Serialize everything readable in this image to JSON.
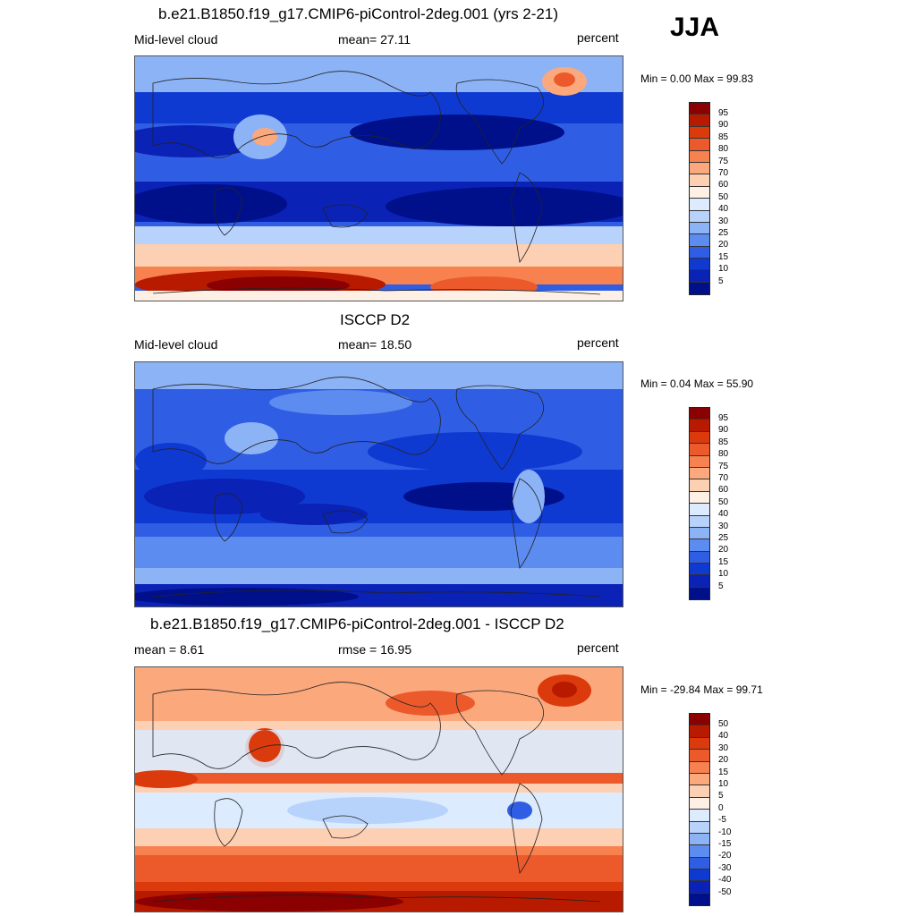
{
  "season": "JJA",
  "panels": [
    {
      "title": "b.e21.B1850.f19_g17.CMIP6-piControl-2deg.001 (yrs 2-21)",
      "left_label": "Mid-level cloud",
      "center_label": "mean=  27.11",
      "right_label": "percent",
      "minmax": "Min =   0.00 Max =  99.83",
      "colorbar": {
        "labels": [
          "95",
          "90",
          "85",
          "80",
          "75",
          "70",
          "60",
          "50",
          "40",
          "30",
          "25",
          "20",
          "15",
          "10",
          "5"
        ],
        "colors": [
          "#8b0000",
          "#b81a00",
          "#db3a0c",
          "#ec5a2c",
          "#f7814f",
          "#fba87d",
          "#fdd0b4",
          "#fff0e6",
          "#dcebfd",
          "#b7d2fb",
          "#8db3f7",
          "#5d8cf0",
          "#2f5ee5",
          "#0f3ad2",
          "#0a22b5",
          "#00108a"
        ]
      }
    },
    {
      "title": "ISCCP D2",
      "left_label": "Mid-level cloud",
      "center_label": "mean=  18.50",
      "right_label": "percent",
      "minmax": "Min =   0.04 Max =  55.90",
      "colorbar": {
        "labels": [
          "95",
          "90",
          "85",
          "80",
          "75",
          "70",
          "60",
          "50",
          "40",
          "30",
          "25",
          "20",
          "15",
          "10",
          "5"
        ],
        "colors": [
          "#8b0000",
          "#b81a00",
          "#db3a0c",
          "#ec5a2c",
          "#f7814f",
          "#fba87d",
          "#fdd0b4",
          "#fff0e6",
          "#dcebfd",
          "#b7d2fb",
          "#8db3f7",
          "#5d8cf0",
          "#2f5ee5",
          "#0f3ad2",
          "#0a22b5",
          "#00108a"
        ]
      }
    },
    {
      "title": "b.e21.B1850.f19_g17.CMIP6-piControl-2deg.001 - ISCCP D2",
      "left_label": "mean =   8.61",
      "center_label": "rmse =  16.95",
      "right_label": "percent",
      "minmax": "Min = -29.84 Max =  99.71",
      "colorbar": {
        "labels": [
          "50",
          "40",
          "30",
          "20",
          "15",
          "10",
          "5",
          "0",
          "-5",
          "-10",
          "-15",
          "-20",
          "-30",
          "-40",
          "-50"
        ],
        "colors": [
          "#8b0000",
          "#b81a00",
          "#db3a0c",
          "#ec5a2c",
          "#f7814f",
          "#fba87d",
          "#fdd0b4",
          "#fff0e6",
          "#dcebfd",
          "#b7d2fb",
          "#8db3f7",
          "#5d8cf0",
          "#2f5ee5",
          "#0f3ad2",
          "#0a22b5",
          "#00108a"
        ]
      }
    }
  ]
}
